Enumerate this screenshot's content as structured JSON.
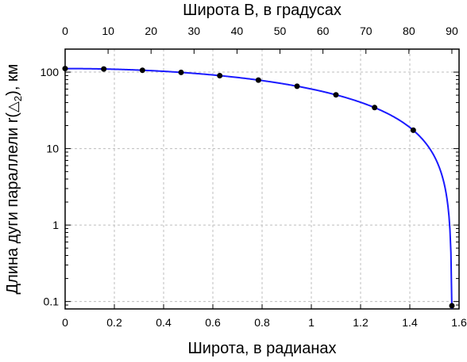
{
  "chart_data": {
    "type": "line",
    "xlabel_bottom": "Широта, в радианах",
    "xlabel_top": "Широта B, в градусах",
    "ylabel_main": "Длина дуги параллели r(",
    "ylabel_sub": "2",
    "ylabel_tail": "), км",
    "yscale": "log",
    "xlim": [
      0,
      1.6
    ],
    "ylim": [
      0.08,
      200
    ],
    "top_axis_range_deg": [
      0,
      90
    ],
    "grid": true,
    "x_ticks": [
      0,
      0.2,
      0.4,
      0.6,
      0.8,
      1,
      1.2,
      1.4,
      1.6
    ],
    "x_tick_labels": [
      "0",
      "0.2",
      "0.4",
      "0.6",
      "0.8",
      "1",
      "1.2",
      "1.4",
      "1.6"
    ],
    "top_ticks_deg": [
      0,
      10,
      20,
      30,
      40,
      50,
      60,
      70,
      80,
      90
    ],
    "top_tick_labels": [
      "0",
      "10",
      "20",
      "30",
      "40",
      "50",
      "60",
      "70",
      "80",
      "90"
    ],
    "y_ticks": [
      0.1,
      1,
      10,
      100
    ],
    "y_tick_labels": [
      "0.1",
      "1",
      "10",
      "100"
    ],
    "series": [
      {
        "line_color": "#1a1aff",
        "marker_color": "#000000",
        "curve_max": 111.3,
        "curve_x_end": 1.5708,
        "points_x": [
          0,
          0.157,
          0.314,
          0.471,
          0.628,
          0.785,
          0.942,
          1.1,
          1.257,
          1.414,
          1.571
        ],
        "points_y": [
          111.3,
          109.9,
          105.8,
          99.1,
          90.0,
          78.6,
          65.4,
          50.5,
          34.4,
          17.4,
          0.088
        ]
      }
    ]
  }
}
